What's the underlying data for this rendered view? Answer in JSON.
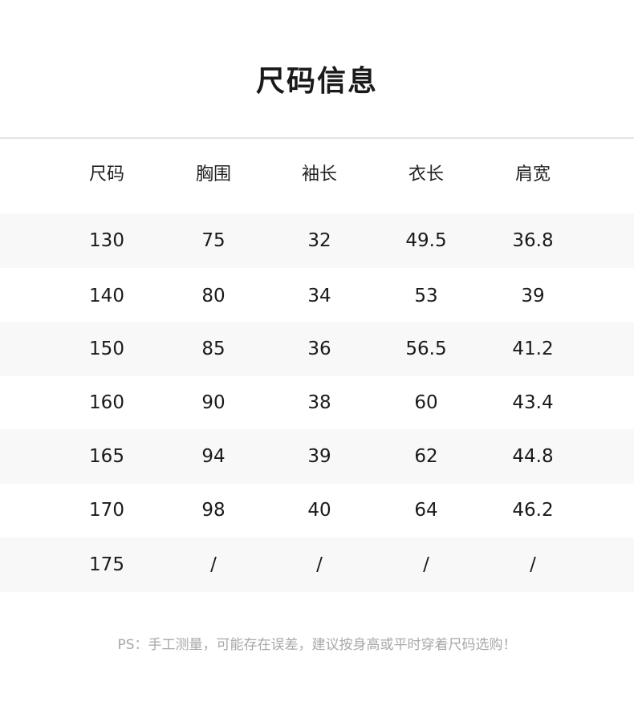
{
  "title": "尺码信息",
  "table": {
    "headers": [
      "尺码",
      "胸围",
      "袖长",
      "衣长",
      "肩宽"
    ],
    "rows": [
      [
        "130",
        "75",
        "32",
        "49.5",
        "36.8"
      ],
      [
        "140",
        "80",
        "34",
        "53",
        "39"
      ],
      [
        "150",
        "85",
        "36",
        "56.5",
        "41.2"
      ],
      [
        "160",
        "90",
        "38",
        "60",
        "43.4"
      ],
      [
        "165",
        "94",
        "39",
        "62",
        "44.8"
      ],
      [
        "170",
        "98",
        "40",
        "64",
        "46.2"
      ],
      [
        "175",
        "/",
        "/",
        "/",
        "/"
      ]
    ]
  },
  "note": "PS：手工测量，可能存在误差，建议按身高或平时穿着尺码选购！"
}
